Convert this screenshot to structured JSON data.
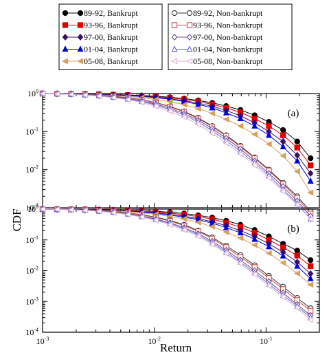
{
  "chart_data": [
    {
      "type": "line",
      "panel_label": "(a)",
      "xlabel": "",
      "ylabel": "CDF",
      "xscale": "log",
      "yscale": "log",
      "xlim": [
        0.001,
        0.3
      ],
      "ylim": [
        0.001,
        1
      ],
      "x_ticks": [
        {
          "mantissa": "10",
          "exp": "-3"
        },
        {
          "mantissa": "10",
          "exp": "-2"
        },
        {
          "mantissa": "10",
          "exp": "-1"
        }
      ],
      "y_ticks": [
        {
          "mantissa": "10",
          "exp": "0"
        },
        {
          "mantissa": "10",
          "exp": "-1"
        },
        {
          "mantissa": "10",
          "exp": "-2"
        },
        {
          "mantissa": "10",
          "exp": "-3"
        }
      ],
      "x": [
        0.001,
        0.00135,
        0.0018,
        0.0024,
        0.0032,
        0.0043,
        0.0058,
        0.0077,
        0.0103,
        0.0138,
        0.0185,
        0.0247,
        0.033,
        0.044,
        0.059,
        0.079,
        0.106,
        0.142,
        0.19,
        0.25
      ],
      "series": [
        {
          "name": "89-92, Bankrupt",
          "color": "#000000",
          "marker": "circle",
          "filled": true,
          "values": [
            1.0,
            0.99,
            0.98,
            0.97,
            0.96,
            0.94,
            0.92,
            0.89,
            0.85,
            0.8,
            0.74,
            0.66,
            0.57,
            0.47,
            0.37,
            0.27,
            0.18,
            0.11,
            0.055,
            0.02
          ]
        },
        {
          "name": "93-96, Bankrupt",
          "color": "#e00000",
          "marker": "square",
          "filled": true,
          "values": [
            1.0,
            0.99,
            0.98,
            0.97,
            0.95,
            0.93,
            0.91,
            0.87,
            0.83,
            0.77,
            0.7,
            0.62,
            0.52,
            0.42,
            0.32,
            0.22,
            0.14,
            0.08,
            0.038,
            0.013
          ]
        },
        {
          "name": "97-00, Bankrupt",
          "color": "#3a1068",
          "marker": "diamond",
          "filled": true,
          "values": [
            1.0,
            0.99,
            0.98,
            0.96,
            0.94,
            0.92,
            0.89,
            0.85,
            0.8,
            0.73,
            0.65,
            0.56,
            0.46,
            0.36,
            0.26,
            0.17,
            0.1,
            0.055,
            0.024,
            0.008
          ]
        },
        {
          "name": "01-04, Bankrupt",
          "color": "#0000dd",
          "marker": "triangle",
          "filled": true,
          "values": [
            1.0,
            0.99,
            0.98,
            0.96,
            0.94,
            0.91,
            0.88,
            0.84,
            0.78,
            0.71,
            0.62,
            0.52,
            0.42,
            0.31,
            0.22,
            0.14,
            0.08,
            0.04,
            0.017,
            0.005
          ]
        },
        {
          "name": "05-08, Bankrupt",
          "color": "#d4a060",
          "marker": "triangle-left",
          "filled": true,
          "values": [
            1.0,
            0.99,
            0.97,
            0.95,
            0.92,
            0.89,
            0.84,
            0.78,
            0.7,
            0.61,
            0.51,
            0.4,
            0.3,
            0.21,
            0.14,
            0.085,
            0.047,
            0.023,
            0.009,
            0.0025
          ]
        },
        {
          "name": "89-92, Non-bankrupt",
          "color": "#333333",
          "marker": "circle",
          "filled": false,
          "values": [
            1.0,
            0.99,
            0.97,
            0.94,
            0.9,
            0.85,
            0.78,
            0.69,
            0.58,
            0.46,
            0.34,
            0.23,
            0.14,
            0.08,
            0.042,
            0.021,
            0.01,
            0.0045,
            0.002,
            0.0008
          ]
        },
        {
          "name": "93-96, Non-bankrupt",
          "color": "#c84848",
          "marker": "square",
          "filled": false,
          "values": [
            1.0,
            0.99,
            0.97,
            0.94,
            0.9,
            0.84,
            0.77,
            0.68,
            0.57,
            0.45,
            0.33,
            0.22,
            0.135,
            0.077,
            0.04,
            0.02,
            0.0095,
            0.0042,
            0.0018,
            0.0007
          ]
        },
        {
          "name": "97-00, Non-bankrupt",
          "color": "#6a4a8a",
          "marker": "diamond",
          "filled": false,
          "values": [
            1.0,
            0.98,
            0.96,
            0.93,
            0.88,
            0.82,
            0.74,
            0.64,
            0.53,
            0.41,
            0.3,
            0.2,
            0.12,
            0.067,
            0.035,
            0.017,
            0.008,
            0.0036,
            0.0015,
            0.0006
          ]
        },
        {
          "name": "01-04, Non-bankrupt",
          "color": "#6a6ae0",
          "marker": "triangle",
          "filled": false,
          "values": [
            1.0,
            0.98,
            0.96,
            0.92,
            0.87,
            0.8,
            0.72,
            0.62,
            0.5,
            0.38,
            0.27,
            0.18,
            0.105,
            0.058,
            0.03,
            0.015,
            0.007,
            0.003,
            0.0013,
            0.0005
          ]
        },
        {
          "name": "05-08, Non-bankrupt",
          "color": "#d8b0d8",
          "marker": "triangle-left",
          "filled": false,
          "values": [
            1.0,
            0.98,
            0.95,
            0.91,
            0.86,
            0.78,
            0.69,
            0.58,
            0.46,
            0.34,
            0.24,
            0.155,
            0.09,
            0.05,
            0.026,
            0.013,
            0.006,
            0.0027,
            0.0012,
            0.0005
          ]
        }
      ]
    },
    {
      "type": "line",
      "panel_label": "(b)",
      "xlabel": "Return",
      "ylabel": "CDF",
      "xscale": "log",
      "yscale": "log",
      "xlim": [
        0.001,
        0.3
      ],
      "ylim": [
        0.0001,
        1
      ],
      "x_ticks": [
        {
          "mantissa": "10",
          "exp": "-3"
        },
        {
          "mantissa": "10",
          "exp": "-2"
        },
        {
          "mantissa": "10",
          "exp": "-1"
        }
      ],
      "y_ticks": [
        {
          "mantissa": "10",
          "exp": "0"
        },
        {
          "mantissa": "10",
          "exp": "-1"
        },
        {
          "mantissa": "10",
          "exp": "-2"
        },
        {
          "mantissa": "10",
          "exp": "-3"
        },
        {
          "mantissa": "10",
          "exp": "-4"
        }
      ],
      "x": [
        0.001,
        0.00135,
        0.0018,
        0.0024,
        0.0032,
        0.0043,
        0.0058,
        0.0077,
        0.0103,
        0.0138,
        0.0185,
        0.0247,
        0.033,
        0.044,
        0.059,
        0.079,
        0.106,
        0.142,
        0.19,
        0.25
      ],
      "series": [
        {
          "name": "89-92, Bankrupt",
          "color": "#000000",
          "marker": "circle",
          "filled": true,
          "values": [
            1.0,
            0.99,
            0.98,
            0.97,
            0.96,
            0.94,
            0.92,
            0.89,
            0.85,
            0.79,
            0.72,
            0.63,
            0.53,
            0.42,
            0.31,
            0.21,
            0.13,
            0.075,
            0.045,
            0.022
          ]
        },
        {
          "name": "93-96, Bankrupt",
          "color": "#e00000",
          "marker": "square",
          "filled": true,
          "values": [
            1.0,
            0.99,
            0.98,
            0.97,
            0.95,
            0.93,
            0.9,
            0.86,
            0.81,
            0.74,
            0.66,
            0.57,
            0.47,
            0.36,
            0.26,
            0.17,
            0.1,
            0.057,
            0.031,
            0.014
          ]
        },
        {
          "name": "97-00, Bankrupt",
          "color": "#3a1068",
          "marker": "diamond",
          "filled": true,
          "values": [
            1.0,
            0.99,
            0.98,
            0.96,
            0.94,
            0.91,
            0.87,
            0.82,
            0.76,
            0.68,
            0.59,
            0.49,
            0.39,
            0.29,
            0.2,
            0.13,
            0.075,
            0.04,
            0.019,
            0.008
          ]
        },
        {
          "name": "01-04, Bankrupt",
          "color": "#0000dd",
          "marker": "triangle",
          "filled": true,
          "values": [
            1.0,
            0.99,
            0.98,
            0.96,
            0.93,
            0.9,
            0.85,
            0.8,
            0.73,
            0.64,
            0.55,
            0.45,
            0.35,
            0.25,
            0.17,
            0.105,
            0.06,
            0.03,
            0.014,
            0.0055
          ]
        },
        {
          "name": "05-08, Bankrupt",
          "color": "#d4a060",
          "marker": "triangle-left",
          "filled": true,
          "values": [
            1.0,
            0.99,
            0.97,
            0.95,
            0.92,
            0.88,
            0.83,
            0.76,
            0.68,
            0.58,
            0.48,
            0.37,
            0.27,
            0.18,
            0.115,
            0.068,
            0.037,
            0.018,
            0.0082,
            0.0035
          ]
        },
        {
          "name": "89-92, Non-bankrupt",
          "color": "#333333",
          "marker": "circle",
          "filled": false,
          "values": [
            1.0,
            0.99,
            0.97,
            0.94,
            0.9,
            0.84,
            0.76,
            0.66,
            0.55,
            0.43,
            0.31,
            0.2,
            0.12,
            0.065,
            0.032,
            0.015,
            0.0068,
            0.003,
            0.0013,
            0.0006
          ]
        },
        {
          "name": "93-96, Non-bankrupt",
          "color": "#c84848",
          "marker": "square",
          "filled": false,
          "values": [
            1.0,
            0.99,
            0.97,
            0.94,
            0.89,
            0.83,
            0.75,
            0.65,
            0.53,
            0.41,
            0.29,
            0.19,
            0.11,
            0.058,
            0.028,
            0.013,
            0.0058,
            0.0025,
            0.0011,
            0.0005
          ]
        },
        {
          "name": "97-00, Non-bankrupt",
          "color": "#6a4a8a",
          "marker": "diamond",
          "filled": false,
          "values": [
            1.0,
            0.98,
            0.96,
            0.92,
            0.87,
            0.8,
            0.71,
            0.6,
            0.48,
            0.36,
            0.25,
            0.16,
            0.09,
            0.046,
            0.022,
            0.01,
            0.0044,
            0.0019,
            0.0008,
            0.00035
          ]
        },
        {
          "name": "01-04, Non-bankrupt",
          "color": "#6a6ae0",
          "marker": "triangle",
          "filled": false,
          "values": [
            1.0,
            0.98,
            0.96,
            0.92,
            0.86,
            0.79,
            0.69,
            0.58,
            0.46,
            0.34,
            0.23,
            0.145,
            0.08,
            0.04,
            0.019,
            0.0085,
            0.0037,
            0.0016,
            0.0007,
            0.0003
          ]
        },
        {
          "name": "05-08, Non-bankrupt",
          "color": "#d8b0d8",
          "marker": "triangle-left",
          "filled": false,
          "values": [
            1.0,
            0.98,
            0.95,
            0.91,
            0.85,
            0.77,
            0.67,
            0.55,
            0.43,
            0.31,
            0.21,
            0.13,
            0.072,
            0.036,
            0.017,
            0.0075,
            0.0032,
            0.0014,
            0.0006,
            0.00025
          ]
        }
      ]
    }
  ]
}
